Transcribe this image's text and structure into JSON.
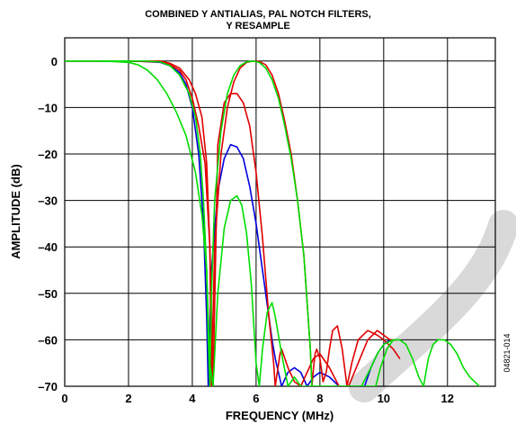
{
  "chart_data": {
    "type": "line",
    "title": [
      "COMBINED Y ANTIALIAS, PAL NOTCH FILTERS,",
      "Y RESAMPLE"
    ],
    "xlabel": "FREQUENCY (MHz)",
    "ylabel": "AMPLITUDE (dB)",
    "xlim": [
      0,
      13.5
    ],
    "ylim": [
      -70,
      5
    ],
    "xticks": [
      0,
      2,
      4,
      6,
      8,
      10,
      12
    ],
    "yticks": [
      0,
      -10,
      -20,
      -30,
      -40,
      -50,
      -60,
      -70
    ],
    "grid": true,
    "figure_id": "04821-014",
    "series": [
      {
        "color": "#0000dd",
        "x": [
          0,
          1,
          2,
          2.5,
          3,
          3.3,
          3.6,
          3.8,
          4.0,
          4.2,
          4.35,
          4.45,
          4.5,
          4.6,
          4.8,
          5.0,
          5.2,
          5.4,
          5.6,
          5.8,
          6.0,
          6.2,
          6.4,
          6.5,
          6.6,
          6.7,
          6.8,
          7.0,
          7.2,
          7.4,
          7.6,
          7.8,
          8.0,
          8.3,
          8.6,
          9.0,
          9.4,
          9.6,
          9.8,
          10.0,
          10.2,
          10.4
        ],
        "y": [
          0,
          0,
          0,
          -0.1,
          -0.3,
          -1,
          -2.5,
          -5,
          -10,
          -20,
          -35,
          -55,
          -70,
          -45,
          -28,
          -21,
          -18,
          -18.5,
          -21,
          -27,
          -35,
          -45,
          -55,
          -60,
          -64,
          -67,
          -70,
          -67,
          -66,
          -67,
          -70,
          -68,
          -67,
          -68,
          -70,
          -70,
          -70,
          -66,
          -63,
          -61,
          -60,
          -60
        ]
      },
      {
        "color": "#e00000",
        "x": [
          0,
          1,
          2,
          3,
          3.3,
          3.6,
          3.8,
          4.0,
          4.2,
          4.4,
          4.55,
          4.65,
          4.8,
          5.0,
          5.2,
          5.4,
          5.6,
          5.8,
          6.0,
          6.2,
          6.4,
          6.55,
          6.6,
          6.75,
          6.8,
          6.9,
          7.0,
          7.2,
          7.4,
          7.6,
          7.8,
          8.0,
          8.3,
          8.6,
          8.9,
          9.2,
          9.5,
          9.8,
          10.0,
          10.2,
          10.4
        ],
        "y": [
          0,
          0,
          0,
          -0.2,
          -0.8,
          -2,
          -4,
          -8,
          -14,
          -22,
          -40,
          -70,
          -18,
          -9,
          -7,
          -7,
          -9,
          -14,
          -24,
          -38,
          -55,
          -65,
          -70,
          -63,
          -62,
          -64,
          -66,
          -69,
          -70,
          -67,
          -64,
          -63,
          -66,
          -70,
          -70,
          -65,
          -60,
          -58,
          -59,
          -60,
          -60
        ]
      },
      {
        "color": "#e00000",
        "x": [
          0,
          2,
          2.5,
          3,
          3.3,
          3.6,
          3.9,
          4.1,
          4.3,
          4.45,
          4.55,
          4.6,
          4.7,
          4.9,
          5.1,
          5.3,
          5.5,
          5.7,
          5.9,
          6.1,
          6.3,
          6.5,
          6.7,
          6.9,
          7.1,
          7.3,
          7.5,
          7.6,
          7.7,
          7.75,
          7.8,
          7.85,
          7.9,
          8.0,
          8.1,
          8.2,
          8.3,
          8.4,
          8.55,
          8.7,
          8.85,
          9.0,
          9.2,
          9.5,
          9.8,
          10.0,
          10.3,
          10.5
        ],
        "y": [
          0,
          0,
          0,
          0,
          -0.5,
          -1.5,
          -4,
          -7,
          -12,
          -22,
          -40,
          -70,
          -40,
          -20,
          -10,
          -4.5,
          -1.5,
          -0.3,
          0,
          -0.1,
          -0.8,
          -3,
          -7,
          -13,
          -20,
          -30,
          -42,
          -52,
          -62,
          -70,
          -66,
          -63,
          -62,
          -64,
          -69,
          -67,
          -62,
          -58,
          -57,
          -62,
          -70,
          -65,
          -60,
          -58,
          -59,
          -60,
          -62,
          -64
        ]
      },
      {
        "color": "#00dd00",
        "x": [
          0,
          1,
          1.5,
          2,
          2.3,
          2.6,
          2.9,
          3.2,
          3.5,
          3.8,
          4.1,
          4.3,
          4.45,
          4.55,
          4.65,
          4.8,
          5.0,
          5.2,
          5.4,
          5.55,
          5.7,
          5.85,
          6.0,
          6.1,
          6.2,
          6.35,
          6.5,
          6.6,
          6.8,
          7.0,
          7.2,
          7.4,
          7.6,
          7.8,
          8.0,
          8.2,
          8.5,
          8.8,
          9.0,
          9.3,
          9.6,
          9.8,
          10.0,
          10.3
        ],
        "y": [
          0,
          0,
          -0.1,
          -0.3,
          -0.8,
          -2,
          -4,
          -7,
          -11,
          -16,
          -24,
          -33,
          -45,
          -65,
          -70,
          -50,
          -36,
          -30,
          -29,
          -31,
          -37,
          -48,
          -65,
          -70,
          -62,
          -54,
          -52,
          -55,
          -63,
          -70,
          -68,
          -70,
          -70,
          -70,
          -70,
          -70,
          -70,
          -70,
          -70,
          -70,
          -66,
          -63,
          -61,
          -60
        ]
      },
      {
        "color": "#00dd00",
        "x": [
          0,
          2,
          2.5,
          3,
          3.3,
          3.6,
          3.9,
          4.1,
          4.25,
          4.35,
          4.45,
          4.5,
          4.55,
          4.6,
          4.7,
          4.9,
          5.1,
          5.3,
          5.5,
          5.7,
          5.9,
          6.1,
          6.3,
          6.5,
          6.7,
          6.9,
          7.1,
          7.3,
          7.5,
          7.6,
          7.7,
          7.75,
          7.8,
          7.9,
          8.0,
          8.2,
          8.4,
          8.6,
          8.8,
          9.0,
          9.2,
          9.4,
          9.6,
          9.75,
          9.9,
          10.1,
          10.3,
          10.5,
          10.7,
          10.9,
          11.1,
          11.25,
          11.4,
          11.55,
          11.7,
          11.9,
          12.1,
          12.3,
          12.5,
          12.7,
          12.85,
          13.0
        ],
        "y": [
          0,
          0,
          0,
          -0.2,
          -1,
          -3,
          -7,
          -12,
          -20,
          -30,
          -45,
          -60,
          -70,
          -50,
          -30,
          -15,
          -7,
          -3,
          -1,
          -0.2,
          0,
          -0.3,
          -1.5,
          -4,
          -8,
          -14,
          -21,
          -30,
          -42,
          -52,
          -62,
          -70,
          -70,
          -70,
          -70,
          -70,
          -70,
          -70,
          -70,
          -70,
          -70,
          -70,
          -70,
          -70,
          -66,
          -62,
          -60,
          -60,
          -61,
          -64,
          -68,
          -70,
          -64,
          -61,
          -60,
          -60,
          -61,
          -63,
          -66,
          -68,
          -69,
          -70
        ]
      }
    ]
  }
}
